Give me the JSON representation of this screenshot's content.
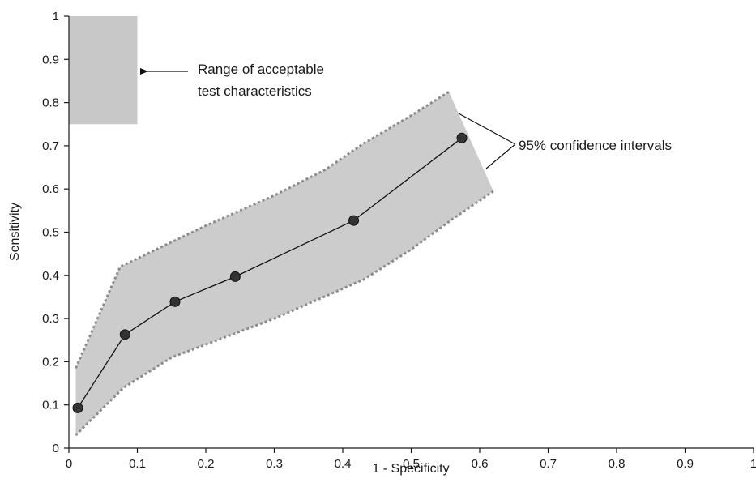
{
  "chart_data": {
    "type": "line",
    "xlabel": "1 - Specificity",
    "ylabel": "Sensitivity",
    "xlim": [
      0,
      1
    ],
    "ylim": [
      0,
      1
    ],
    "grid": false,
    "xticks": [
      "0",
      "0.1",
      "0.2",
      "0.3",
      "0.4",
      "0.5",
      "0.6",
      "0.7",
      "0.8",
      "0.9",
      "1"
    ],
    "yticks": [
      "0",
      "0.1",
      "0.2",
      "0.3",
      "0.4",
      "0.5",
      "0.6",
      "0.7",
      "0.8",
      "0.9",
      "1"
    ],
    "series": [
      {
        "x": [
          0.013,
          0.082,
          0.155,
          0.243,
          0.416,
          0.574
        ],
        "y": [
          0.093,
          0.263,
          0.339,
          0.397,
          0.527,
          0.718
        ]
      }
    ],
    "confidence_band": {
      "upper": {
        "x": [
          0.01,
          0.075,
          0.2,
          0.3,
          0.375,
          0.43,
          0.5,
          0.555
        ],
        "y": [
          0.185,
          0.42,
          0.515,
          0.585,
          0.645,
          0.705,
          0.77,
          0.825
        ]
      },
      "lower": {
        "x": [
          0.01,
          0.08,
          0.15,
          0.3,
          0.43,
          0.5,
          0.56,
          0.62
        ],
        "y": [
          0.03,
          0.14,
          0.21,
          0.3,
          0.39,
          0.46,
          0.53,
          0.595
        ]
      },
      "fill_color": "#cccccc",
      "edge_color": "#8c8c8c"
    },
    "acceptable_region": {
      "x": [
        0,
        0.1
      ],
      "y": [
        0.75,
        1
      ],
      "fill_color": "#c8c8c8"
    },
    "annotations": {
      "acceptable_label_line1": "Range of acceptable",
      "acceptable_label_line2": "test characteristics",
      "ci_label": "95% confidence intervals"
    },
    "colors": {
      "line": "#111111",
      "marker": "#333333"
    }
  }
}
